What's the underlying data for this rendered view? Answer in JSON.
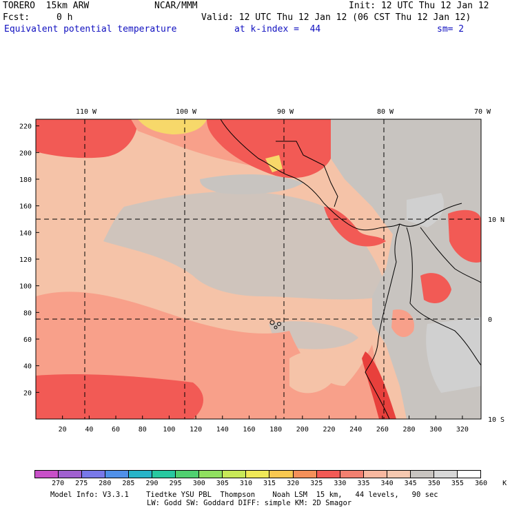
{
  "header": {
    "model": "TORERO  15km ARW",
    "center": "NCAR/MMM",
    "init": "Init: 12 UTC Thu 12 Jan 12",
    "fcst_label": "Fcst:",
    "fcst_value": "0 h",
    "valid": "Valid: 12 UTC Thu 12 Jan 12 (06 CST Thu 12 Jan 12)",
    "field": "Equivalent potential temperature",
    "level": "at k-index =  44",
    "smoothing": "sm= 2"
  },
  "map": {
    "lon_labels": [
      "110 W",
      "100 W",
      "90 W",
      "80 W",
      "70 W"
    ],
    "lat_labels": [
      "10 N",
      "0",
      "10 S"
    ],
    "x_ticks": [
      "20",
      "40",
      "60",
      "80",
      "100",
      "120",
      "140",
      "160",
      "180",
      "200",
      "220",
      "240",
      "260",
      "280",
      "300",
      "320"
    ],
    "y_ticks": [
      "220",
      "200",
      "180",
      "160",
      "140",
      "120",
      "100",
      "80",
      "60",
      "40",
      "20"
    ],
    "colors": {
      "pink_light": "#f5c3a8",
      "salmon": "#f8a08a",
      "red": "#f25a55",
      "red_dark": "#e8403c",
      "gray": "#c8c4c0",
      "gray_light": "#d0d0d0",
      "yellow": "#f7d86a",
      "orange": "#f49a5c"
    }
  },
  "colorbar": {
    "labels": [
      "270",
      "275",
      "280",
      "285",
      "290",
      "295",
      "300",
      "305",
      "310",
      "315",
      "320",
      "325",
      "330",
      "335",
      "340",
      "345",
      "350",
      "355",
      "360",
      "K"
    ],
    "colors": [
      "#c850c8",
      "#a060d0",
      "#7878e8",
      "#5090e8",
      "#28b4c8",
      "#28c8a0",
      "#50d070",
      "#90e060",
      "#c8e858",
      "#f0e858",
      "#f8c850",
      "#f4905a",
      "#f25a55",
      "#f28070",
      "#f8b8a0",
      "#f5c8b0",
      "#c8c4c0",
      "#d8d8d8",
      "#ffffff"
    ]
  },
  "footer": {
    "line1": "Model Info: V3.3.1    Tiedtke YSU PBL  Thompson    Noah LSM  15 km,   44 levels,   90 sec",
    "line2": "LW: Godd SW: Goddard DIFF: simple KM: 2D Smagor"
  }
}
